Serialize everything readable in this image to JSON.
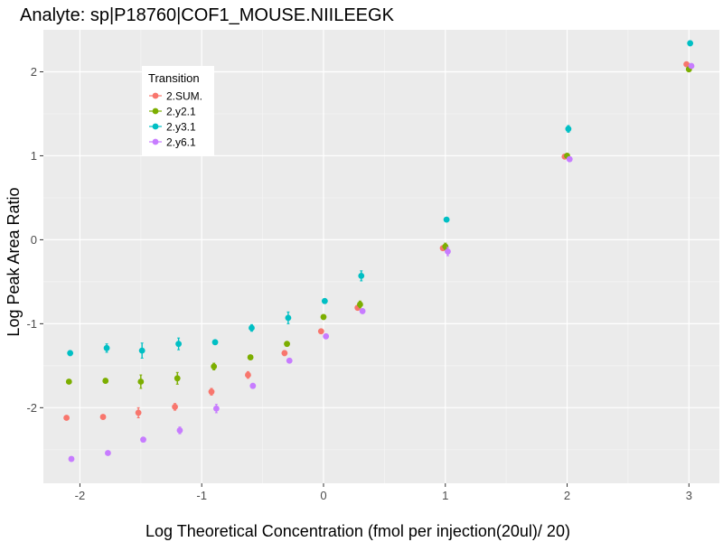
{
  "chart_data": {
    "type": "scatter",
    "title": "Analyte: sp|P18760|COF1_MOUSE.NIILEEGK",
    "xlabel": "Log Theoretical Concentration (fmol per injection(20ul)/ 20)",
    "ylabel": "Log Peak Area Ratio",
    "xlim": [
      -2.3,
      3.25
    ],
    "ylim": [
      -2.9,
      2.5
    ],
    "x_ticks": [
      -2,
      -1,
      0,
      1,
      2,
      3
    ],
    "y_ticks": [
      -2,
      -1,
      0,
      1,
      2
    ],
    "x_tick_labels": [
      "-2",
      "-1",
      "0",
      "1",
      "2",
      "3"
    ],
    "y_tick_labels": [
      "-2",
      "-1",
      "0",
      "1",
      "2"
    ],
    "grid": true,
    "legend": {
      "title": "Transition",
      "position": "top-left"
    },
    "series": [
      {
        "name": "2.SUM.",
        "color": "#F8766D",
        "points": [
          {
            "x": -2.11,
            "y": -2.12,
            "err": 0.02
          },
          {
            "x": -1.81,
            "y": -2.11,
            "err": 0.02
          },
          {
            "x": -1.52,
            "y": -2.06,
            "err": 0.06
          },
          {
            "x": -1.22,
            "y": -1.99,
            "err": 0.04
          },
          {
            "x": -0.92,
            "y": -1.81,
            "err": 0.04
          },
          {
            "x": -0.62,
            "y": -1.61,
            "err": 0.04
          },
          {
            "x": -0.32,
            "y": -1.35,
            "err": 0.03
          },
          {
            "x": -0.02,
            "y": -1.09,
            "err": 0.02
          },
          {
            "x": 0.28,
            "y": -0.81,
            "err": 0.02
          },
          {
            "x": 0.98,
            "y": -0.1,
            "err": 0.02
          },
          {
            "x": 1.98,
            "y": 0.99,
            "err": 0.01
          },
          {
            "x": 2.98,
            "y": 2.09,
            "err": 0.01
          }
        ]
      },
      {
        "name": "2.y2.1",
        "color": "#7CAE00",
        "points": [
          {
            "x": -2.09,
            "y": -1.69,
            "err": 0.02
          },
          {
            "x": -1.79,
            "y": -1.68,
            "err": 0.02
          },
          {
            "x": -1.5,
            "y": -1.69,
            "err": 0.08
          },
          {
            "x": -1.2,
            "y": -1.65,
            "err": 0.07
          },
          {
            "x": -0.9,
            "y": -1.51,
            "err": 0.04
          },
          {
            "x": -0.6,
            "y": -1.4,
            "err": 0.02
          },
          {
            "x": -0.3,
            "y": -1.24,
            "err": 0.02
          },
          {
            "x": 0.0,
            "y": -0.92,
            "err": 0.02
          },
          {
            "x": 0.3,
            "y": -0.77,
            "err": 0.04
          },
          {
            "x": 1.0,
            "y": -0.08,
            "err": 0.04
          },
          {
            "x": 2.0,
            "y": 1.0,
            "err": 0.02
          },
          {
            "x": 3.0,
            "y": 2.03,
            "err": 0.02
          }
        ]
      },
      {
        "name": "2.y3.1",
        "color": "#00BFC4",
        "points": [
          {
            "x": -2.08,
            "y": -1.35,
            "err": 0.03
          },
          {
            "x": -1.78,
            "y": -1.29,
            "err": 0.05
          },
          {
            "x": -1.49,
            "y": -1.32,
            "err": 0.09
          },
          {
            "x": -1.19,
            "y": -1.24,
            "err": 0.07
          },
          {
            "x": -0.89,
            "y": -1.22,
            "err": 0.02
          },
          {
            "x": -0.59,
            "y": -1.05,
            "err": 0.04
          },
          {
            "x": -0.29,
            "y": -0.93,
            "err": 0.07
          },
          {
            "x": 0.01,
            "y": -0.73,
            "err": 0.03
          },
          {
            "x": 0.31,
            "y": -0.43,
            "err": 0.06
          },
          {
            "x": 1.01,
            "y": 0.24,
            "err": 0.02
          },
          {
            "x": 2.01,
            "y": 1.32,
            "err": 0.04
          },
          {
            "x": 3.01,
            "y": 2.34,
            "err": 0.03
          }
        ]
      },
      {
        "name": "2.y6.1",
        "color": "#C77CFF",
        "points": [
          {
            "x": -2.07,
            "y": -2.61,
            "err": 0.02
          },
          {
            "x": -1.77,
            "y": -2.54,
            "err": 0.02
          },
          {
            "x": -1.48,
            "y": -2.38,
            "err": 0.02
          },
          {
            "x": -1.18,
            "y": -2.27,
            "err": 0.04
          },
          {
            "x": -0.88,
            "y": -2.01,
            "err": 0.05
          },
          {
            "x": -0.58,
            "y": -1.74,
            "err": 0.03
          },
          {
            "x": -0.28,
            "y": -1.44,
            "err": 0.02
          },
          {
            "x": 0.02,
            "y": -1.15,
            "err": 0.02
          },
          {
            "x": 0.32,
            "y": -0.85,
            "err": 0.02
          },
          {
            "x": 1.02,
            "y": -0.14,
            "err": 0.05
          },
          {
            "x": 2.02,
            "y": 0.96,
            "err": 0.02
          },
          {
            "x": 3.02,
            "y": 2.07,
            "err": 0.02
          }
        ]
      }
    ]
  }
}
